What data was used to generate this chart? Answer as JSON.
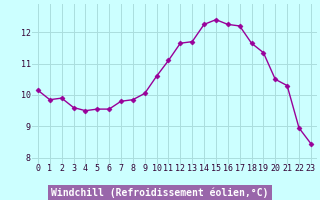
{
  "x": [
    0,
    1,
    2,
    3,
    4,
    5,
    6,
    7,
    8,
    9,
    10,
    11,
    12,
    13,
    14,
    15,
    16,
    17,
    18,
    19,
    20,
    21,
    22,
    23
  ],
  "y": [
    10.15,
    9.85,
    9.9,
    9.6,
    9.5,
    9.55,
    9.55,
    9.8,
    9.85,
    10.05,
    10.6,
    11.1,
    11.65,
    11.7,
    12.25,
    12.4,
    12.25,
    12.2,
    11.65,
    11.35,
    10.5,
    10.3,
    8.95,
    8.45
  ],
  "line_color": "#990099",
  "marker": "D",
  "marker_size": 2.5,
  "bg_color": "#ccffff",
  "grid_color": "#aadddd",
  "xlabel": "Windchill (Refroidissement éolien,°C)",
  "xlabel_color": "white",
  "xlabel_bg": "#9966aa",
  "tick_color": "#330033",
  "ylim": [
    7.8,
    12.9
  ],
  "yticks": [
    8,
    9,
    10,
    11,
    12
  ],
  "xlim": [
    -0.5,
    23.5
  ],
  "xticks": [
    0,
    1,
    2,
    3,
    4,
    5,
    6,
    7,
    8,
    9,
    10,
    11,
    12,
    13,
    14,
    15,
    16,
    17,
    18,
    19,
    20,
    21,
    22,
    23
  ],
  "tick_fontsize": 6,
  "label_fontsize": 7
}
